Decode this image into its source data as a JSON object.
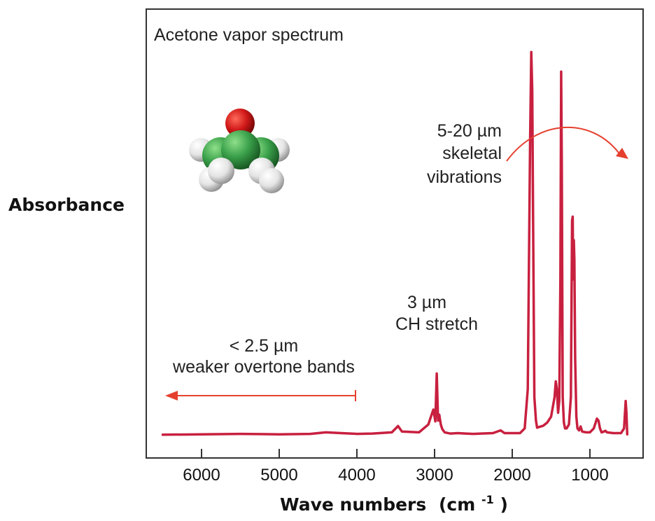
{
  "chart_data": {
    "type": "line",
    "title": "Acetone vapor spectrum",
    "xlabel": "Wave numbers",
    "xlabel_unit_base": "(cm",
    "xlabel_unit_exp": "-1",
    "xlabel_unit_close": ")",
    "ylabel": "Absorbance",
    "x_reversed": true,
    "xlim": [
      6700,
      450
    ],
    "ylim": [
      0,
      1
    ],
    "x_ticks": [
      6000,
      5000,
      4000,
      3000,
      2000,
      1000
    ],
    "x_tick_labels": [
      "6000",
      "5000",
      "4000",
      "3000",
      "2000",
      "1000"
    ],
    "grid": false,
    "series": [
      {
        "color": "#c8203f",
        "x": [
          6500,
          6000,
          5500,
          5000,
          4600,
          4400,
          4200,
          4000,
          3800,
          3550,
          3470,
          3420,
          3200,
          3080,
          3030,
          3015,
          2990,
          2972,
          2955,
          2940,
          2920,
          2900,
          2870,
          2800,
          2700,
          2600,
          2500,
          2400,
          2250,
          2150,
          2100,
          2000,
          1900,
          1840,
          1800,
          1770,
          1755,
          1742,
          1730,
          1715,
          1695,
          1680,
          1650,
          1600,
          1550,
          1500,
          1455,
          1440,
          1425,
          1410,
          1395,
          1380,
          1370,
          1362,
          1350,
          1335,
          1320,
          1300,
          1270,
          1245,
          1230,
          1222,
          1215,
          1207,
          1200,
          1190,
          1175,
          1160,
          1140,
          1120,
          1100,
          1050,
          1000,
          950,
          910,
          890,
          870,
          850,
          820,
          800,
          780,
          700,
          600,
          560,
          540,
          530,
          520
        ],
        "y": [
          0.004,
          0.005,
          0.006,
          0.005,
          0.006,
          0.01,
          0.008,
          0.006,
          0.007,
          0.01,
          0.026,
          0.012,
          0.01,
          0.03,
          0.06,
          0.068,
          0.038,
          0.16,
          0.04,
          0.055,
          0.03,
          0.018,
          0.01,
          0.007,
          0.008,
          0.007,
          0.006,
          0.007,
          0.008,
          0.015,
          0.008,
          0.008,
          0.008,
          0.02,
          0.12,
          0.75,
          0.98,
          0.88,
          0.5,
          0.1,
          0.04,
          0.022,
          0.024,
          0.027,
          0.035,
          0.05,
          0.1,
          0.14,
          0.12,
          0.06,
          0.09,
          0.4,
          0.93,
          0.7,
          0.1,
          0.035,
          0.02,
          0.02,
          0.03,
          0.1,
          0.55,
          0.56,
          0.4,
          0.5,
          0.45,
          0.2,
          0.05,
          0.02,
          0.015,
          0.025,
          0.012,
          0.01,
          0.01,
          0.02,
          0.045,
          0.04,
          0.02,
          0.01,
          0.012,
          0.014,
          0.01,
          0.008,
          0.008,
          0.02,
          0.09,
          0.06,
          0.005
        ]
      }
    ],
    "annotations": [
      {
        "lines": [
          "< 2.5 µm",
          "weaker overtone bands"
        ],
        "arrow": "left",
        "arrow_from": 4000,
        "arrow_to": 6500
      },
      {
        "lines": [
          "3 µm",
          "CH stretch"
        ]
      },
      {
        "lines": [
          "5-20 µm",
          "skeletal",
          "vibrations"
        ],
        "arrow": "right"
      }
    ],
    "colors": {
      "spectrum": "#c8203f",
      "arrow": "#e5402e",
      "frame": "#333333",
      "molecule_carbon": "#3aa04a",
      "molecule_oxygen": "#d01818",
      "molecule_hydrogen": "#e4e4e4"
    },
    "inset_image": "acetone-molecule-icon"
  }
}
